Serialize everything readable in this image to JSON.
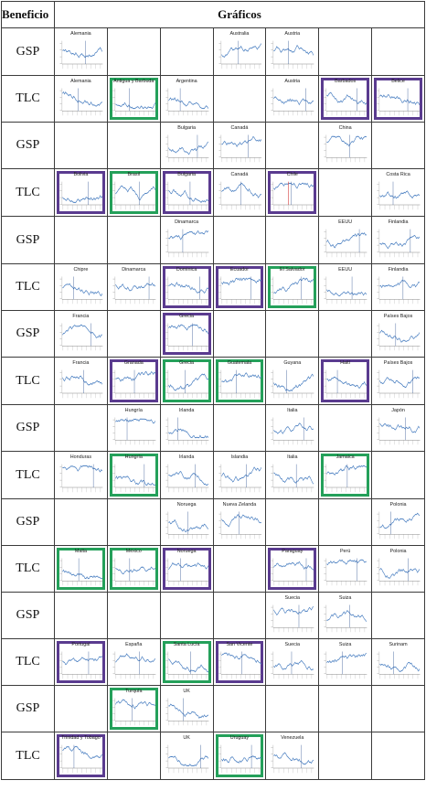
{
  "header": {
    "col1": "Beneficio",
    "col2": "Gráficos"
  },
  "colors": {
    "purple_frame": "#5a3b8f",
    "green_frame": "#24a05a",
    "line": "#4a7fc1",
    "marker_blue": "#2a4f8f",
    "marker_red": "#d23a3a"
  },
  "rows": [
    {
      "label": "GSP",
      "cells": [
        {
          "col": 0,
          "name": "Alemania"
        },
        {
          "col": 3,
          "name": "Australia"
        },
        {
          "col": 4,
          "name": "Austria"
        }
      ]
    },
    {
      "label": "TLC",
      "cells": [
        {
          "col": 0,
          "name": "Alemania"
        },
        {
          "col": 1,
          "name": "Antigua y Barbuda",
          "frame": "green"
        },
        {
          "col": 2,
          "name": "Argentina"
        },
        {
          "col": 4,
          "name": "Austria"
        },
        {
          "col": 5,
          "name": "Barbados",
          "frame": "purple"
        },
        {
          "col": 6,
          "name": "Belice",
          "frame": "purple"
        }
      ]
    },
    {
      "label": "GSP",
      "cells": [
        {
          "col": 2,
          "name": "Bulgaria"
        },
        {
          "col": 3,
          "name": "Canadá"
        },
        {
          "col": 5,
          "name": "China"
        }
      ]
    },
    {
      "label": "TLC",
      "cells": [
        {
          "col": 0,
          "name": "Bolivia",
          "frame": "purple"
        },
        {
          "col": 1,
          "name": "Brasil",
          "frame": "green"
        },
        {
          "col": 2,
          "name": "Bulgaria",
          "frame": "purple"
        },
        {
          "col": 3,
          "name": "Canadá"
        },
        {
          "col": 4,
          "name": "Chile",
          "frame": "purple",
          "red": true
        },
        {
          "col": 6,
          "name": "Costa Rica"
        }
      ]
    },
    {
      "label": "GSP",
      "cells": [
        {
          "col": 2,
          "name": "Dinamarca"
        },
        {
          "col": 5,
          "name": "EEUU"
        },
        {
          "col": 6,
          "name": "Finlandia"
        }
      ]
    },
    {
      "label": "TLC",
      "cells": [
        {
          "col": 0,
          "name": "Chipre"
        },
        {
          "col": 1,
          "name": "Dinamarca"
        },
        {
          "col": 2,
          "name": "Dominica",
          "frame": "purple"
        },
        {
          "col": 3,
          "name": "Ecuador",
          "frame": "purple"
        },
        {
          "col": 4,
          "name": "El Salvador",
          "frame": "green"
        },
        {
          "col": 5,
          "name": "EEUU"
        },
        {
          "col": 6,
          "name": "Finlandia"
        }
      ]
    },
    {
      "label": "GSP",
      "cells": [
        {
          "col": 0,
          "name": "Francia"
        },
        {
          "col": 2,
          "name": "Grecia",
          "frame": "purple"
        },
        {
          "col": 6,
          "name": "Países Bajos"
        }
      ]
    },
    {
      "label": "TLC",
      "cells": [
        {
          "col": 0,
          "name": "Francia"
        },
        {
          "col": 1,
          "name": "Granada",
          "frame": "purple"
        },
        {
          "col": 2,
          "name": "Grecia",
          "frame": "green"
        },
        {
          "col": 3,
          "name": "Guatemala",
          "frame": "green"
        },
        {
          "col": 4,
          "name": "Guyana"
        },
        {
          "col": 5,
          "name": "Haití",
          "frame": "purple"
        },
        {
          "col": 6,
          "name": "Países Bajos"
        }
      ]
    },
    {
      "label": "GSP",
      "cells": [
        {
          "col": 1,
          "name": "Hungría"
        },
        {
          "col": 2,
          "name": "Irlanda"
        },
        {
          "col": 4,
          "name": "Italia"
        },
        {
          "col": 6,
          "name": "Japón"
        }
      ]
    },
    {
      "label": "TLC",
      "cells": [
        {
          "col": 0,
          "name": "Honduras"
        },
        {
          "col": 1,
          "name": "Hungría",
          "frame": "green"
        },
        {
          "col": 2,
          "name": "Irlanda"
        },
        {
          "col": 3,
          "name": "Islandia"
        },
        {
          "col": 4,
          "name": "Italia"
        },
        {
          "col": 5,
          "name": "Jamaica",
          "frame": "green"
        }
      ]
    },
    {
      "label": "GSP",
      "cells": [
        {
          "col": 2,
          "name": "Noruega"
        },
        {
          "col": 3,
          "name": "Nueva Zelanda"
        },
        {
          "col": 6,
          "name": "Polonia"
        }
      ]
    },
    {
      "label": "TLC",
      "cells": [
        {
          "col": 0,
          "name": "Malta",
          "frame": "green"
        },
        {
          "col": 1,
          "name": "México",
          "frame": "green"
        },
        {
          "col": 2,
          "name": "Noruega",
          "frame": "purple"
        },
        {
          "col": 4,
          "name": "Paraguay",
          "frame": "purple"
        },
        {
          "col": 5,
          "name": "Perú"
        },
        {
          "col": 6,
          "name": "Polonia"
        }
      ]
    },
    {
      "label": "GSP",
      "cells": [
        {
          "col": 4,
          "name": "Suecia"
        },
        {
          "col": 5,
          "name": "Suiza"
        }
      ]
    },
    {
      "label": "TLC",
      "cells": [
        {
          "col": 0,
          "name": "Portugal",
          "frame": "purple"
        },
        {
          "col": 1,
          "name": "España"
        },
        {
          "col": 2,
          "name": "Santa Lucía",
          "frame": "green"
        },
        {
          "col": 3,
          "name": "San Vicente",
          "frame": "purple"
        },
        {
          "col": 4,
          "name": "Suecia"
        },
        {
          "col": 5,
          "name": "Suiza"
        },
        {
          "col": 6,
          "name": "Surinam"
        }
      ]
    },
    {
      "label": "GSP",
      "cells": [
        {
          "col": 1,
          "name": "Turquía",
          "frame": "green"
        },
        {
          "col": 2,
          "name": "UK"
        }
      ]
    },
    {
      "label": "TLC",
      "cells": [
        {
          "col": 0,
          "name": "Trinidad y Tobago",
          "frame": "purple"
        },
        {
          "col": 2,
          "name": "UK"
        },
        {
          "col": 3,
          "name": "Uruguay",
          "frame": "green"
        },
        {
          "col": 4,
          "name": "Venezuela"
        }
      ]
    }
  ]
}
